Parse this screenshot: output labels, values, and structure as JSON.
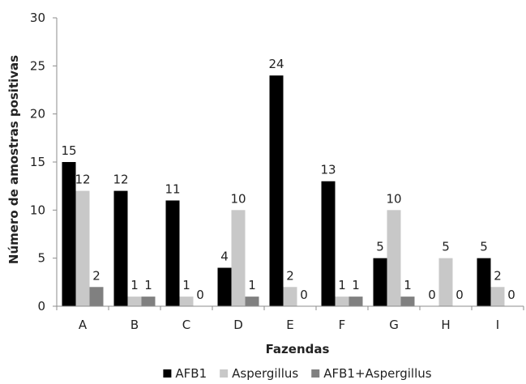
{
  "chart_data": {
    "type": "bar",
    "xlabel": "Fazendas",
    "ylabel": "Número de amostras positivas",
    "ylim": [
      0,
      30
    ],
    "yticks": [
      0,
      5,
      10,
      15,
      20,
      25,
      30
    ],
    "grid": false,
    "legend_position": "bottom",
    "categories": [
      "A",
      "B",
      "C",
      "D",
      "E",
      "F",
      "G",
      "H",
      "I"
    ],
    "series": [
      {
        "name": "AFB1",
        "color": "#000000",
        "values": [
          15,
          12,
          11,
          4,
          24,
          13,
          5,
          0,
          5
        ]
      },
      {
        "name": "Aspergillus",
        "color": "#c8c8c8",
        "values": [
          12,
          1,
          1,
          10,
          2,
          1,
          10,
          5,
          2
        ]
      },
      {
        "name": "AFB1+Aspergillus",
        "color": "#808080",
        "values": [
          2,
          1,
          0,
          1,
          0,
          1,
          1,
          0,
          0
        ]
      }
    ]
  }
}
